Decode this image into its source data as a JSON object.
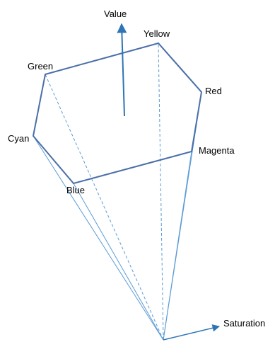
{
  "diagram": {
    "colors": {
      "outline": "#4A6FA8",
      "rays": "#5B9BD5",
      "axis": "#2E75B6",
      "text": "#000000"
    },
    "labels": {
      "value_axis": "Value",
      "saturation_axis": "Saturation",
      "yellow": "Yellow",
      "green": "Green",
      "red": "Red",
      "cyan": "Cyan",
      "magenta": "Magenta",
      "blue": "Blue"
    }
  }
}
